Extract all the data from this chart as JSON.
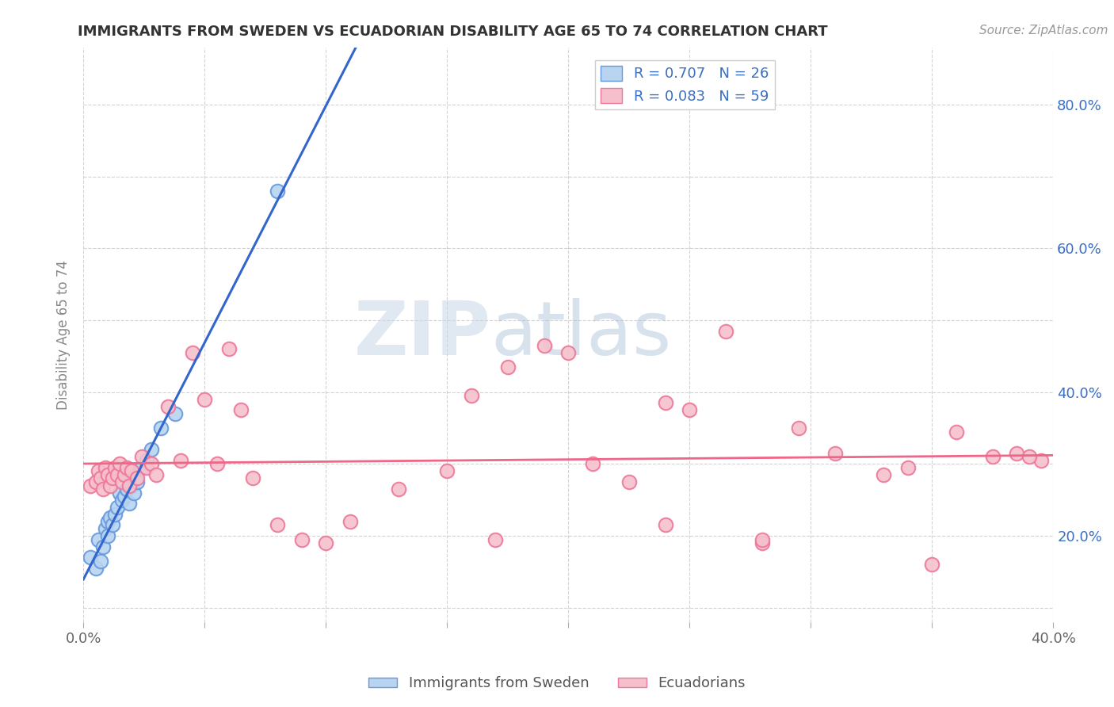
{
  "title": "IMMIGRANTS FROM SWEDEN VS ECUADORIAN DISABILITY AGE 65 TO 74 CORRELATION CHART",
  "source_text": "Source: ZipAtlas.com",
  "ylabel": "Disability Age 65 to 74",
  "xlim": [
    0.0,
    0.4
  ],
  "ylim": [
    0.08,
    0.88
  ],
  "x_ticks": [
    0.0,
    0.05,
    0.1,
    0.15,
    0.2,
    0.25,
    0.3,
    0.35,
    0.4
  ],
  "y_ticks": [
    0.1,
    0.2,
    0.3,
    0.4,
    0.5,
    0.6,
    0.7,
    0.8
  ],
  "y_tick_labels_right": [
    "",
    "20.0%",
    "",
    "40.0%",
    "",
    "60.0%",
    "",
    "80.0%"
  ],
  "legend_r1": "R = 0.707",
  "legend_n1": "N = 26",
  "legend_r2": "R = 0.083",
  "legend_n2": "N = 59",
  "legend_label1": "Immigrants from Sweden",
  "legend_label2": "Ecuadorians",
  "color_blue_fill": "#b8d4f0",
  "color_pink_fill": "#f5c0cc",
  "color_blue_edge": "#6699dd",
  "color_pink_edge": "#ee7799",
  "color_blue_line": "#3366cc",
  "color_pink_line": "#ee6688",
  "color_text_blue": "#3a6fc4",
  "color_axis_label": "#888888",
  "background_color": "#ffffff",
  "grid_color": "#c8c8c8",
  "sweden_x": [
    0.003,
    0.005,
    0.006,
    0.007,
    0.008,
    0.009,
    0.01,
    0.01,
    0.011,
    0.012,
    0.013,
    0.014,
    0.015,
    0.016,
    0.017,
    0.018,
    0.019,
    0.02,
    0.021,
    0.022,
    0.024,
    0.026,
    0.028,
    0.032,
    0.038,
    0.08
  ],
  "sweden_y": [
    0.17,
    0.155,
    0.195,
    0.165,
    0.185,
    0.21,
    0.22,
    0.2,
    0.225,
    0.215,
    0.23,
    0.24,
    0.26,
    0.25,
    0.255,
    0.265,
    0.245,
    0.27,
    0.26,
    0.275,
    0.295,
    0.305,
    0.32,
    0.35,
    0.37,
    0.68
  ],
  "ecuador_x": [
    0.003,
    0.005,
    0.006,
    0.007,
    0.008,
    0.009,
    0.01,
    0.011,
    0.012,
    0.013,
    0.014,
    0.015,
    0.016,
    0.017,
    0.018,
    0.019,
    0.02,
    0.022,
    0.024,
    0.026,
    0.028,
    0.03,
    0.035,
    0.04,
    0.045,
    0.05,
    0.055,
    0.06,
    0.065,
    0.07,
    0.08,
    0.09,
    0.1,
    0.11,
    0.13,
    0.15,
    0.16,
    0.175,
    0.19,
    0.2,
    0.21,
    0.225,
    0.24,
    0.25,
    0.265,
    0.28,
    0.295,
    0.31,
    0.33,
    0.34,
    0.35,
    0.36,
    0.375,
    0.385,
    0.395,
    0.17,
    0.24,
    0.28,
    0.39
  ],
  "ecuador_y": [
    0.27,
    0.275,
    0.29,
    0.28,
    0.265,
    0.295,
    0.285,
    0.27,
    0.28,
    0.295,
    0.285,
    0.3,
    0.275,
    0.285,
    0.295,
    0.27,
    0.29,
    0.28,
    0.31,
    0.295,
    0.3,
    0.285,
    0.38,
    0.305,
    0.455,
    0.39,
    0.3,
    0.46,
    0.375,
    0.28,
    0.215,
    0.195,
    0.19,
    0.22,
    0.265,
    0.29,
    0.395,
    0.435,
    0.465,
    0.455,
    0.3,
    0.275,
    0.385,
    0.375,
    0.485,
    0.19,
    0.35,
    0.315,
    0.285,
    0.295,
    0.16,
    0.345,
    0.31,
    0.315,
    0.305,
    0.195,
    0.215,
    0.195,
    0.31
  ]
}
